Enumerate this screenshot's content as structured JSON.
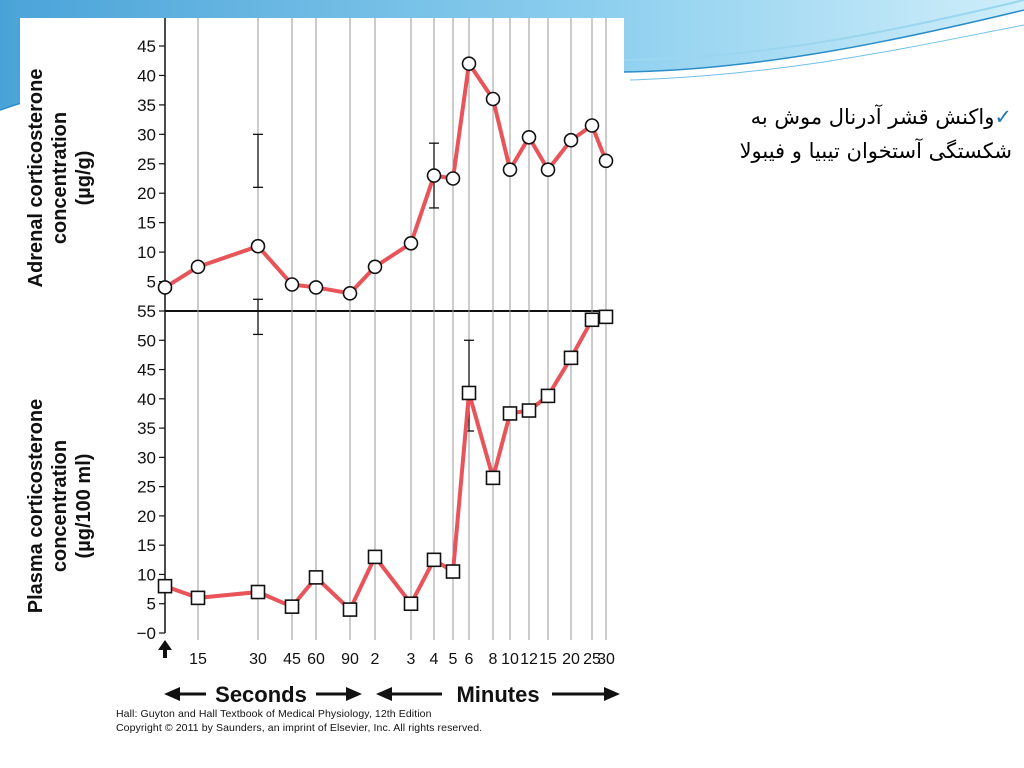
{
  "slide": {
    "note_line1": "واکنش قشر آدرنال موش به",
    "note_line2": "شکستگی آستخوان تیبیا و فیبولا",
    "check_icon": "checkmark-icon",
    "accent_color": "#1f77b4"
  },
  "credit": {
    "line1": "Hall: Guyton and Hall Textbook of Medical Physiology, 12th Edition",
    "line2": "Copyright © 2011 by Saunders, an imprint of Elsevier, Inc. All rights reserved."
  },
  "chart_data": [
    {
      "type": "line",
      "ylabel_line1": "Adrenal corticosterone",
      "ylabel_line2": "concentration",
      "ylabel_line3": "(µg/g)",
      "ylim": [
        0,
        48
      ],
      "yticks": [
        5,
        10,
        15,
        20,
        25,
        30,
        35,
        40,
        45
      ],
      "marker": "circle",
      "line_color": "#e8545a",
      "x": [
        "0",
        "15",
        "30",
        "45",
        "60",
        "90",
        "2",
        "3",
        "4",
        "5",
        "6",
        "8",
        "10",
        "12",
        "15",
        "20",
        "25",
        "30"
      ],
      "values": [
        4,
        7.5,
        11,
        4.5,
        4,
        3,
        7.5,
        11.5,
        23,
        22.5,
        42,
        36,
        24,
        29.5,
        24,
        29,
        31.5,
        25.5
      ],
      "error_bars": [
        {
          "x": "4",
          "low": 17.5,
          "high": 28.5
        },
        {
          "x": "30",
          "low": 21,
          "high": 30
        }
      ]
    },
    {
      "type": "line",
      "ylabel_line1": "Plasma corticosterone",
      "ylabel_line2": "concentration",
      "ylabel_line3": "(µg/100 ml)",
      "ylim": [
        0,
        55
      ],
      "yticks": [
        0,
        5,
        10,
        15,
        20,
        25,
        30,
        35,
        40,
        45,
        50,
        55
      ],
      "ytick_labels": [
        "−0",
        "5",
        "10",
        "15",
        "20",
        "25",
        "30",
        "35",
        "40",
        "45",
        "50",
        "55"
      ],
      "marker": "square",
      "line_color": "#e8545a",
      "x": [
        "0",
        "15",
        "30",
        "45",
        "60",
        "90",
        "2",
        "3",
        "4",
        "5",
        "6",
        "8",
        "10",
        "12",
        "15",
        "20",
        "25",
        "30"
      ],
      "values": [
        8,
        6,
        7,
        4.5,
        9.5,
        4,
        13,
        5,
        12.5,
        10.5,
        41,
        26.5,
        37.5,
        38,
        40.5,
        47,
        53.5,
        54
      ],
      "error_bars": [
        {
          "x": "6",
          "low": 34.5,
          "high": 50
        },
        {
          "x": "30",
          "low": 51,
          "high": 57
        }
      ]
    }
  ],
  "x_axis": {
    "tick_labels": [
      "15",
      "30",
      "45",
      "60",
      "90",
      "2",
      "3",
      "4",
      "5",
      "6",
      "8",
      "10",
      "12",
      "15",
      "20",
      "25",
      "30"
    ],
    "seconds_label": "Seconds",
    "minutes_label": "Minutes",
    "arrow_icon": "up-arrow-icon"
  }
}
